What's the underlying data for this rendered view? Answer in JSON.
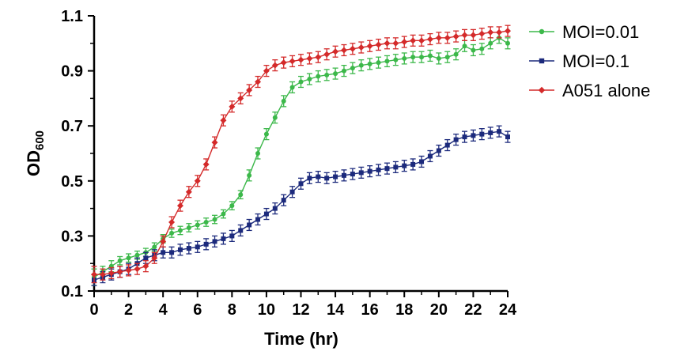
{
  "chart_data": {
    "type": "line",
    "title": "",
    "xlabel": "Time (hr)",
    "ylabel": {
      "main": "OD",
      "sub": "600"
    },
    "xlim": [
      0,
      24
    ],
    "ylim": [
      0.1,
      1.1
    ],
    "xticks": [
      0,
      2,
      4,
      6,
      8,
      10,
      12,
      14,
      16,
      18,
      20,
      22,
      24
    ],
    "xtick_labels": [
      "0",
      "2",
      "4",
      "6",
      "8",
      "10",
      "12",
      "14",
      "16",
      "18",
      "20",
      "22",
      "24"
    ],
    "yticks": [
      0.1,
      0.3,
      0.5,
      0.7,
      0.9,
      1.1
    ],
    "ytick_labels": [
      "0.1",
      "0.3",
      "0.5",
      "0.7",
      "0.9",
      "1.1"
    ],
    "grid": false,
    "legend_position": "top-right",
    "x": [
      0,
      0.5,
      1,
      1.5,
      2,
      2.5,
      3,
      3.5,
      4,
      4.5,
      5,
      5.5,
      6,
      6.5,
      7,
      7.5,
      8,
      8.5,
      9,
      9.5,
      10,
      10.5,
      11,
      11.5,
      12,
      12.5,
      13,
      13.5,
      14,
      14.5,
      15,
      15.5,
      16,
      16.5,
      17,
      17.5,
      18,
      18.5,
      19,
      19.5,
      20,
      20.5,
      21,
      21.5,
      22,
      22.5,
      23,
      23.5,
      24
    ],
    "series": [
      {
        "name": "MOI=0.01",
        "color": "#3cb84a",
        "marker": "circle",
        "values": [
          0.15,
          0.17,
          0.19,
          0.21,
          0.22,
          0.23,
          0.24,
          0.26,
          0.29,
          0.31,
          0.32,
          0.33,
          0.34,
          0.35,
          0.36,
          0.38,
          0.41,
          0.45,
          0.52,
          0.6,
          0.67,
          0.73,
          0.79,
          0.84,
          0.86,
          0.87,
          0.88,
          0.885,
          0.89,
          0.9,
          0.91,
          0.92,
          0.925,
          0.93,
          0.935,
          0.94,
          0.945,
          0.95,
          0.95,
          0.955,
          0.945,
          0.95,
          0.96,
          0.99,
          0.975,
          0.98,
          1.0,
          1.02,
          1.0
        ],
        "errors": [
          0.03,
          0.02,
          0.02,
          0.015,
          0.015,
          0.015,
          0.015,
          0.015,
          0.015,
          0.015,
          0.015,
          0.015,
          0.015,
          0.015,
          0.015,
          0.015,
          0.015,
          0.015,
          0.02,
          0.02,
          0.02,
          0.02,
          0.02,
          0.02,
          0.02,
          0.02,
          0.02,
          0.02,
          0.02,
          0.02,
          0.02,
          0.02,
          0.02,
          0.02,
          0.02,
          0.02,
          0.02,
          0.02,
          0.02,
          0.02,
          0.02,
          0.02,
          0.02,
          0.02,
          0.02,
          0.02,
          0.02,
          0.02,
          0.02
        ]
      },
      {
        "name": "MOI=0.1",
        "color": "#1c2a7c",
        "marker": "square",
        "values": [
          0.14,
          0.15,
          0.16,
          0.17,
          0.18,
          0.2,
          0.22,
          0.23,
          0.24,
          0.24,
          0.25,
          0.255,
          0.26,
          0.27,
          0.28,
          0.29,
          0.3,
          0.32,
          0.34,
          0.36,
          0.38,
          0.4,
          0.43,
          0.46,
          0.49,
          0.51,
          0.515,
          0.51,
          0.515,
          0.52,
          0.525,
          0.53,
          0.535,
          0.54,
          0.545,
          0.55,
          0.555,
          0.56,
          0.57,
          0.59,
          0.61,
          0.63,
          0.65,
          0.66,
          0.665,
          0.67,
          0.675,
          0.68,
          0.66
        ],
        "errors": [
          0.02,
          0.02,
          0.02,
          0.02,
          0.02,
          0.02,
          0.02,
          0.02,
          0.02,
          0.02,
          0.02,
          0.02,
          0.02,
          0.02,
          0.02,
          0.02,
          0.02,
          0.02,
          0.02,
          0.02,
          0.02,
          0.02,
          0.02,
          0.02,
          0.02,
          0.02,
          0.02,
          0.02,
          0.02,
          0.02,
          0.02,
          0.02,
          0.02,
          0.02,
          0.02,
          0.02,
          0.02,
          0.02,
          0.02,
          0.02,
          0.02,
          0.02,
          0.02,
          0.02,
          0.02,
          0.02,
          0.02,
          0.02,
          0.02
        ]
      },
      {
        "name": "A051 alone",
        "color": "#d42a2a",
        "marker": "diamond",
        "values": [
          0.16,
          0.16,
          0.165,
          0.17,
          0.175,
          0.18,
          0.19,
          0.22,
          0.28,
          0.35,
          0.41,
          0.46,
          0.5,
          0.56,
          0.64,
          0.72,
          0.77,
          0.8,
          0.83,
          0.86,
          0.9,
          0.92,
          0.93,
          0.935,
          0.94,
          0.945,
          0.95,
          0.96,
          0.97,
          0.975,
          0.98,
          0.985,
          0.99,
          0.995,
          1.0,
          1.0,
          1.005,
          1.01,
          1.01,
          1.015,
          1.02,
          1.02,
          1.025,
          1.03,
          1.03,
          1.035,
          1.04,
          1.04,
          1.045
        ],
        "errors": [
          0.03,
          0.02,
          0.02,
          0.02,
          0.02,
          0.02,
          0.02,
          0.02,
          0.02,
          0.02,
          0.02,
          0.02,
          0.02,
          0.02,
          0.02,
          0.02,
          0.02,
          0.02,
          0.02,
          0.02,
          0.02,
          0.02,
          0.02,
          0.02,
          0.02,
          0.02,
          0.02,
          0.02,
          0.02,
          0.02,
          0.02,
          0.02,
          0.02,
          0.02,
          0.02,
          0.02,
          0.02,
          0.02,
          0.02,
          0.02,
          0.02,
          0.02,
          0.02,
          0.02,
          0.02,
          0.02,
          0.02,
          0.02,
          0.02
        ]
      }
    ]
  }
}
